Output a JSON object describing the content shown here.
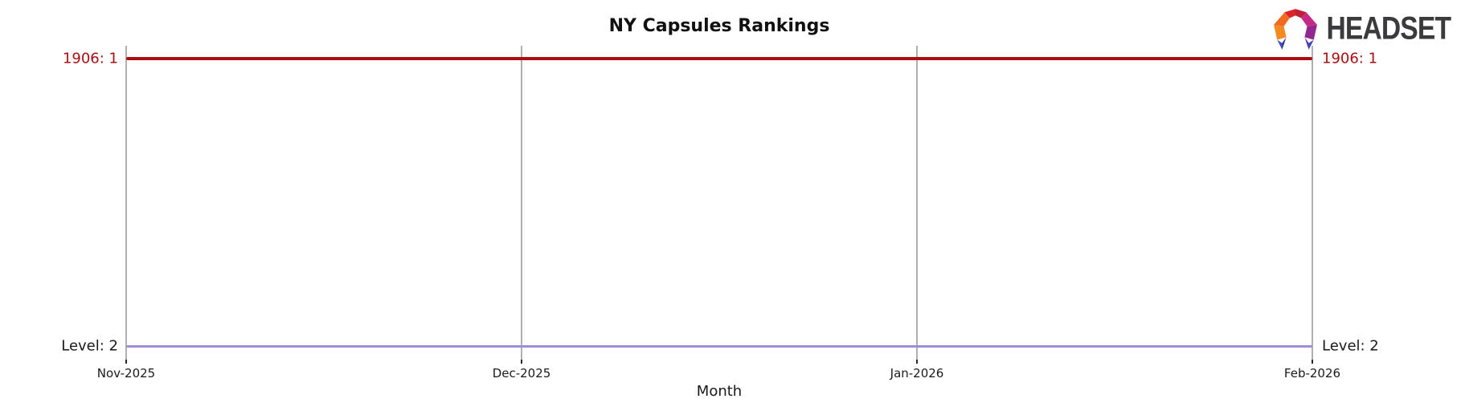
{
  "header": {
    "brand": {
      "name": "HEADSET",
      "text_color": "#3b3b3d"
    }
  },
  "chart_data": {
    "type": "line",
    "title": "NY Capsules Rankings",
    "xlabel": "Month",
    "ylabel": "",
    "categories": [
      "Nov-2025",
      "Dec-2025",
      "Jan-2026",
      "Feb-2026"
    ],
    "series": [
      {
        "name": "1906",
        "values": [
          1,
          1,
          1,
          1
        ],
        "color": "#ab0e11",
        "line_width": 4,
        "left_label": "1906: 1",
        "right_label": "1906: 1",
        "label_color": "#ab0e11"
      },
      {
        "name": "Level",
        "values": [
          2,
          2,
          2,
          2
        ],
        "color": "#9c8ed8",
        "line_width": 3,
        "left_label": "Level: 2",
        "right_label": "Level: 2",
        "label_color": "#1a1a1a"
      }
    ],
    "y_axis": {
      "inverted": true,
      "ticks_visible": false
    },
    "x_grid": {
      "on": true,
      "color": "#b0b0b0"
    },
    "tick_color": "#262626",
    "tick_label_color": "#1a1a1a",
    "legend": "none"
  }
}
